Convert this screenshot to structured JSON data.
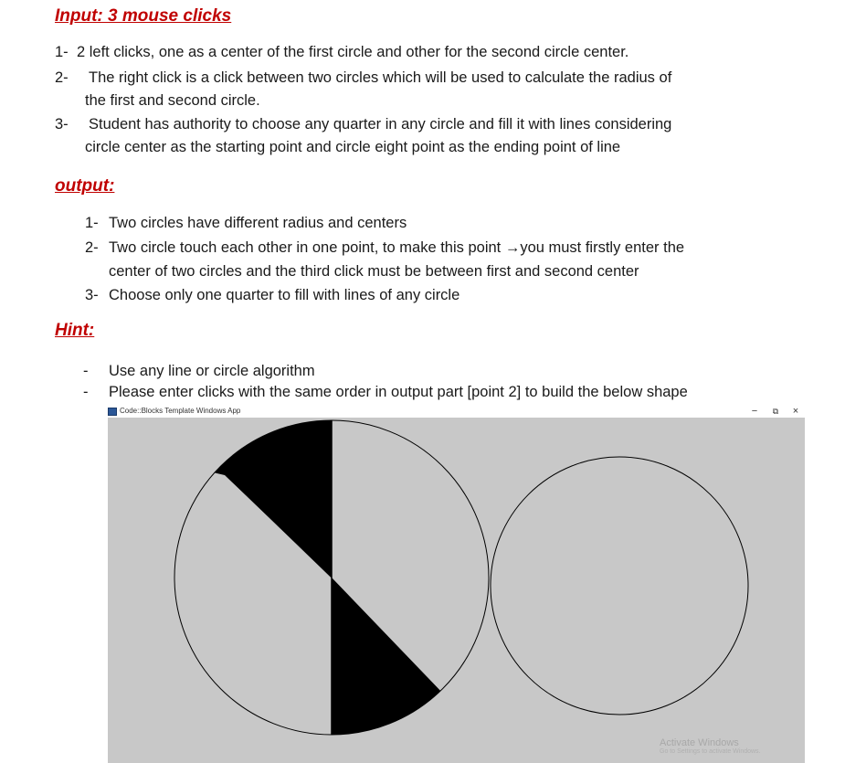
{
  "sections": {
    "input_heading": "Input: 3 mouse clicks",
    "input_items": [
      {
        "num": "1-",
        "lines": [
          "2 left clicks, one as a center of the first circle and other for the second circle center."
        ]
      },
      {
        "num": "2-",
        "lines": [
          "The right click is a click between two circles which will be used to calculate the radius of",
          "the first and second circle."
        ]
      },
      {
        "num": "3-",
        "lines": [
          "Student has authority to choose any quarter in any circle and fill it with lines considering",
          "circle center as the starting point and circle eight point as the ending point of line"
        ]
      }
    ],
    "output_heading": "output:",
    "output_items": [
      {
        "num": "1-",
        "lines": [
          "Two circles have different radius and centers"
        ]
      },
      {
        "num": "2-",
        "lines": [
          "Two circle touch each other in one point, to make this point →you must firstly enter the",
          "center  of two circles and the third click must be between first and second center"
        ]
      },
      {
        "num": "3-",
        "lines": [
          "Choose only one quarter to fill with lines of any circle"
        ]
      }
    ],
    "hint_heading": "Hint:",
    "hint_items": [
      {
        "num": "-",
        "lines": [
          "Use any line or circle algorithm"
        ]
      },
      {
        "num": "-",
        "lines": [
          "Please enter clicks with the same order in output part [point 2] to build the below shape"
        ]
      }
    ]
  },
  "window": {
    "title": "Code::Blocks Template Windows App",
    "controls": {
      "minimize": "−",
      "restore": "⧉",
      "close": "×"
    },
    "canvas_bg": "#c8c8c8",
    "watermark_line1": "Activate Windows",
    "watermark_line2": "Go to Settings to activate Windows."
  },
  "colors": {
    "heading": "#c00000",
    "text": "#1a1a1a",
    "fill": "#000000"
  }
}
